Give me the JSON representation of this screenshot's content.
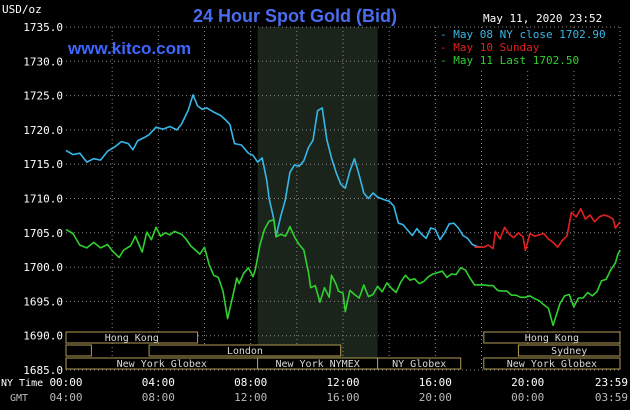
{
  "title": "24 Hour Spot Gold (Bid)",
  "timestamp": "May 11, 2020 23:52",
  "watermark": "www.kitco.com",
  "unit_label": "USD/oz",
  "colors": {
    "background": "#000000",
    "title": "#4a6cf0",
    "watermark": "#3f66ff",
    "text": "#ffffff",
    "grid": "#8a8a8a",
    "shade": "#1a241a",
    "series_may08": "#36b7e8",
    "series_may10": "#e51f1f",
    "series_may11": "#2fd12f",
    "session_box_fill": "#000000",
    "session_box_border": "#b39a52",
    "session_text": "#d8d8d8"
  },
  "chart_data": {
    "type": "line",
    "xlabel_rows": [
      "NY Time",
      "GMT"
    ],
    "x_ticks_ny": [
      "00:00",
      "04:00",
      "08:00",
      "12:00",
      "16:00",
      "20:00",
      "23:59"
    ],
    "x_ticks_gmt": [
      "04:00",
      "08:00",
      "12:00",
      "16:00",
      "20:00",
      "00:00",
      "03:59"
    ],
    "y_ticks": [
      "1735.0",
      "1730.0",
      "1725.0",
      "1720.0",
      "1715.0",
      "1710.0",
      "1705.0",
      "1700.0",
      "1695.0",
      "1690.0",
      "1685.0"
    ],
    "ylim": [
      1685,
      1735
    ],
    "xlim_hours": [
      0,
      24
    ],
    "shaded_hours": [
      8.3,
      13.5
    ],
    "legend_position": "top-right",
    "series": [
      {
        "name": "May 08 NY close 1702.90",
        "color_key": "series_may08",
        "points": [
          [
            0,
            1717.0
          ],
          [
            0.3,
            1716.4
          ],
          [
            0.6,
            1716.6
          ],
          [
            0.9,
            1715.3
          ],
          [
            1.2,
            1715.8
          ],
          [
            1.5,
            1715.6
          ],
          [
            1.8,
            1716.9
          ],
          [
            2.1,
            1717.5
          ],
          [
            2.4,
            1718.3
          ],
          [
            2.7,
            1718.0
          ],
          [
            2.9,
            1717.1
          ],
          [
            3.1,
            1718.4
          ],
          [
            3.4,
            1718.9
          ],
          [
            3.6,
            1719.3
          ],
          [
            3.9,
            1720.4
          ],
          [
            4.2,
            1720.1
          ],
          [
            4.5,
            1720.5
          ],
          [
            4.8,
            1720.0
          ],
          [
            5.0,
            1720.8
          ],
          [
            5.3,
            1722.9
          ],
          [
            5.5,
            1725.1
          ],
          [
            5.7,
            1723.5
          ],
          [
            5.9,
            1723.0
          ],
          [
            6.1,
            1723.2
          ],
          [
            6.4,
            1722.6
          ],
          [
            6.7,
            1722.1
          ],
          [
            6.9,
            1721.5
          ],
          [
            7.1,
            1720.8
          ],
          [
            7.3,
            1718.0
          ],
          [
            7.6,
            1717.8
          ],
          [
            7.9,
            1716.6
          ],
          [
            8.1,
            1716.3
          ],
          [
            8.3,
            1715.3
          ],
          [
            8.5,
            1715.9
          ],
          [
            8.7,
            1712.6
          ],
          [
            8.8,
            1710.0
          ],
          [
            9.0,
            1707.0
          ],
          [
            9.1,
            1704.5
          ],
          [
            9.3,
            1707.4
          ],
          [
            9.5,
            1709.8
          ],
          [
            9.7,
            1713.8
          ],
          [
            9.9,
            1714.9
          ],
          [
            10.1,
            1714.7
          ],
          [
            10.3,
            1715.5
          ],
          [
            10.5,
            1717.4
          ],
          [
            10.7,
            1718.5
          ],
          [
            10.9,
            1722.8
          ],
          [
            11.1,
            1723.2
          ],
          [
            11.3,
            1718.6
          ],
          [
            11.5,
            1715.9
          ],
          [
            11.7,
            1713.8
          ],
          [
            11.9,
            1712.1
          ],
          [
            12.1,
            1711.5
          ],
          [
            12.3,
            1714.0
          ],
          [
            12.5,
            1715.8
          ],
          [
            12.7,
            1713.4
          ],
          [
            12.9,
            1710.8
          ],
          [
            13.1,
            1710.0
          ],
          [
            13.3,
            1710.8
          ],
          [
            13.5,
            1710.2
          ],
          [
            13.8,
            1709.8
          ],
          [
            14.0,
            1709.6
          ],
          [
            14.2,
            1708.9
          ],
          [
            14.4,
            1706.4
          ],
          [
            14.6,
            1706.2
          ],
          [
            14.8,
            1705.4
          ],
          [
            15.0,
            1704.6
          ],
          [
            15.2,
            1705.6
          ],
          [
            15.4,
            1704.8
          ],
          [
            15.6,
            1704.2
          ],
          [
            15.8,
            1705.7
          ],
          [
            16.0,
            1705.5
          ],
          [
            16.2,
            1704.0
          ],
          [
            16.4,
            1705.0
          ],
          [
            16.6,
            1706.3
          ],
          [
            16.8,
            1706.4
          ],
          [
            17.0,
            1705.7
          ],
          [
            17.2,
            1704.6
          ],
          [
            17.4,
            1704.2
          ],
          [
            17.6,
            1703.3
          ],
          [
            17.8,
            1703.0
          ],
          [
            18.0,
            1702.9
          ]
        ]
      },
      {
        "name": "May 10 Sunday",
        "color_key": "series_may10",
        "points": [
          [
            17.7,
            1702.9
          ],
          [
            18.1,
            1702.9
          ],
          [
            18.3,
            1703.2
          ],
          [
            18.5,
            1702.7
          ],
          [
            18.6,
            1705.2
          ],
          [
            18.8,
            1704.1
          ],
          [
            19.0,
            1705.8
          ],
          [
            19.2,
            1704.8
          ],
          [
            19.4,
            1704.3
          ],
          [
            19.6,
            1705.0
          ],
          [
            19.8,
            1704.4
          ],
          [
            19.9,
            1702.4
          ],
          [
            20.1,
            1704.9
          ],
          [
            20.3,
            1704.5
          ],
          [
            20.5,
            1704.7
          ],
          [
            20.7,
            1704.9
          ],
          [
            20.9,
            1704.1
          ],
          [
            21.1,
            1703.6
          ],
          [
            21.3,
            1702.9
          ],
          [
            21.5,
            1703.9
          ],
          [
            21.7,
            1704.5
          ],
          [
            21.9,
            1708.0
          ],
          [
            22.1,
            1707.3
          ],
          [
            22.3,
            1708.5
          ],
          [
            22.5,
            1707.0
          ],
          [
            22.7,
            1707.6
          ],
          [
            22.9,
            1706.6
          ],
          [
            23.1,
            1707.3
          ],
          [
            23.3,
            1707.6
          ],
          [
            23.5,
            1707.4
          ],
          [
            23.7,
            1707.0
          ],
          [
            23.8,
            1705.7
          ],
          [
            24.0,
            1706.6
          ]
        ]
      },
      {
        "name": "May 11 Last 1702.50",
        "color_key": "series_may11",
        "points": [
          [
            0,
            1705.5
          ],
          [
            0.3,
            1704.9
          ],
          [
            0.6,
            1703.2
          ],
          [
            0.9,
            1702.8
          ],
          [
            1.2,
            1703.6
          ],
          [
            1.5,
            1702.8
          ],
          [
            1.8,
            1703.3
          ],
          [
            2.0,
            1702.4
          ],
          [
            2.3,
            1701.4
          ],
          [
            2.5,
            1702.5
          ],
          [
            2.8,
            1703.1
          ],
          [
            3.0,
            1704.5
          ],
          [
            3.3,
            1702.2
          ],
          [
            3.5,
            1705.1
          ],
          [
            3.7,
            1704.0
          ],
          [
            3.9,
            1705.8
          ],
          [
            4.1,
            1704.5
          ],
          [
            4.3,
            1705.0
          ],
          [
            4.5,
            1704.7
          ],
          [
            4.7,
            1705.2
          ],
          [
            5.0,
            1704.8
          ],
          [
            5.2,
            1704.1
          ],
          [
            5.4,
            1703.1
          ],
          [
            5.6,
            1702.5
          ],
          [
            5.8,
            1701.9
          ],
          [
            6.0,
            1702.9
          ],
          [
            6.2,
            1700.4
          ],
          [
            6.4,
            1698.8
          ],
          [
            6.6,
            1698.5
          ],
          [
            6.8,
            1696.5
          ],
          [
            7.0,
            1692.5
          ],
          [
            7.2,
            1695.4
          ],
          [
            7.4,
            1698.4
          ],
          [
            7.5,
            1697.6
          ],
          [
            7.7,
            1699.1
          ],
          [
            7.9,
            1699.9
          ],
          [
            8.1,
            1698.6
          ],
          [
            8.2,
            1699.6
          ],
          [
            8.4,
            1703.2
          ],
          [
            8.6,
            1705.5
          ],
          [
            8.8,
            1706.7
          ],
          [
            9.0,
            1706.9
          ],
          [
            9.1,
            1704.4
          ],
          [
            9.3,
            1704.8
          ],
          [
            9.5,
            1704.5
          ],
          [
            9.6,
            1705.1
          ],
          [
            9.7,
            1705.9
          ],
          [
            9.9,
            1704.4
          ],
          [
            10.1,
            1703.3
          ],
          [
            10.3,
            1702.5
          ],
          [
            10.5,
            1699.3
          ],
          [
            10.6,
            1697.0
          ],
          [
            10.8,
            1697.3
          ],
          [
            11.0,
            1694.9
          ],
          [
            11.2,
            1697.0
          ],
          [
            11.4,
            1695.6
          ],
          [
            11.5,
            1698.8
          ],
          [
            11.7,
            1697.5
          ],
          [
            11.8,
            1696.5
          ],
          [
            12.0,
            1696.2
          ],
          [
            12.1,
            1693.5
          ],
          [
            12.3,
            1696.6
          ],
          [
            12.5,
            1696.0
          ],
          [
            12.7,
            1695.5
          ],
          [
            12.9,
            1697.4
          ],
          [
            13.1,
            1695.7
          ],
          [
            13.3,
            1696.0
          ],
          [
            13.5,
            1697.2
          ],
          [
            13.7,
            1696.4
          ],
          [
            13.9,
            1697.7
          ],
          [
            14.1,
            1696.9
          ],
          [
            14.3,
            1696.3
          ],
          [
            14.5,
            1697.8
          ],
          [
            14.7,
            1698.8
          ],
          [
            14.9,
            1698.1
          ],
          [
            15.1,
            1698.3
          ],
          [
            15.3,
            1697.6
          ],
          [
            15.5,
            1697.9
          ],
          [
            15.7,
            1698.6
          ],
          [
            15.9,
            1699.0
          ],
          [
            16.1,
            1699.2
          ],
          [
            16.3,
            1699.4
          ],
          [
            16.5,
            1698.5
          ],
          [
            16.7,
            1699.0
          ],
          [
            16.9,
            1698.9
          ],
          [
            17.1,
            1699.9
          ],
          [
            17.3,
            1699.6
          ],
          [
            17.5,
            1698.4
          ],
          [
            17.7,
            1697.4
          ],
          [
            17.9,
            1697.4
          ],
          [
            18.1,
            1697.4
          ],
          [
            18.3,
            1697.3
          ],
          [
            18.5,
            1697.3
          ],
          [
            18.7,
            1696.6
          ],
          [
            18.9,
            1696.5
          ],
          [
            19.1,
            1696.5
          ],
          [
            19.3,
            1695.9
          ],
          [
            19.5,
            1695.9
          ],
          [
            19.7,
            1695.6
          ],
          [
            19.9,
            1695.6
          ],
          [
            20.1,
            1695.8
          ],
          [
            20.3,
            1695.4
          ],
          [
            20.5,
            1695.1
          ],
          [
            20.7,
            1694.5
          ],
          [
            20.9,
            1694.0
          ],
          [
            21.1,
            1691.5
          ],
          [
            21.2,
            1692.6
          ],
          [
            21.4,
            1694.7
          ],
          [
            21.6,
            1695.8
          ],
          [
            21.8,
            1696.0
          ],
          [
            22.0,
            1694.2
          ],
          [
            22.2,
            1695.5
          ],
          [
            22.4,
            1695.5
          ],
          [
            22.6,
            1696.3
          ],
          [
            22.8,
            1695.8
          ],
          [
            23.0,
            1696.4
          ],
          [
            23.2,
            1698.0
          ],
          [
            23.4,
            1698.2
          ],
          [
            23.6,
            1699.6
          ],
          [
            23.8,
            1700.6
          ],
          [
            23.9,
            1701.8
          ],
          [
            24.0,
            1702.5
          ]
        ]
      }
    ]
  },
  "sessions": {
    "row1": [
      {
        "label": "Hong Kong",
        "start": 0,
        "end": 5.7
      },
      {
        "label": "Hong Kong",
        "start": 18.1,
        "end": 24
      }
    ],
    "row2": [
      {
        "label": "",
        "start": 0,
        "end": 1.1
      },
      {
        "label": "London",
        "start": 3.6,
        "end": 11.9
      },
      {
        "label": "Sydney",
        "start": 19.6,
        "end": 24
      }
    ],
    "row3": [
      {
        "label": "New York Globex",
        "start": 0,
        "end": 8.3
      },
      {
        "label": "New York NYMEX",
        "start": 8.3,
        "end": 13.5
      },
      {
        "label": "NY Globex",
        "start": 13.5,
        "end": 17.1
      },
      {
        "label": "New York Globex",
        "start": 18.1,
        "end": 24
      }
    ]
  }
}
